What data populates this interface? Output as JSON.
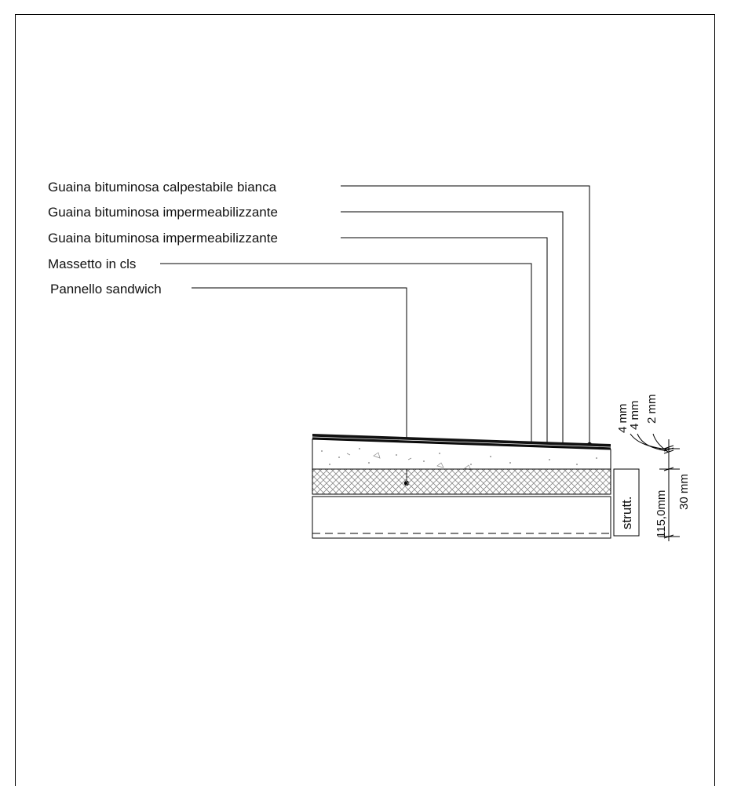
{
  "labels": [
    "Guaina bituminosa calpestabile bianca",
    "Guaina bituminosa impermeabilizzante",
    "Guaina bituminosa impermeabilizzante",
    "Massetto in cls",
    "Pannello sandwich"
  ],
  "dimensions": {
    "top_layer_1": "4 mm",
    "top_layer_2": "4 mm",
    "top_layer_3": "2 mm",
    "screed": "30 mm",
    "panel": "115,0mm"
  },
  "structure_tag": "strutt.",
  "colors": {
    "line": "#000000",
    "background": "#ffffff"
  }
}
